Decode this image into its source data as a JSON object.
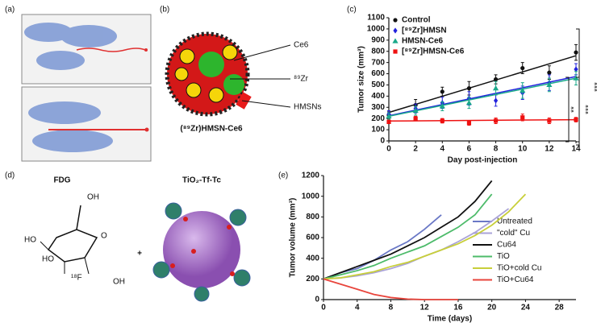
{
  "panels": {
    "labels": [
      "(a)",
      "(b)",
      "(c)",
      "(d)",
      "(e)"
    ],
    "b": {
      "labels": [
        "Ce6",
        "⁸⁹Zr",
        "HMSNs"
      ],
      "caption": "(⁸⁹Zr)HMSN-Ce6"
    },
    "d": {
      "left": "FDG",
      "right": "TiO₂-Tf-Tc",
      "plus": "+",
      "atoms": [
        "OH",
        "HO",
        "HO",
        "O",
        "¹⁸F",
        "OH"
      ]
    }
  },
  "chart_data": [
    {
      "type": "scatter",
      "fit_lines": true,
      "legend": "upper left",
      "xlabel": "Day post-injection",
      "ylabel": "Tumor size (mm³)",
      "x": [
        0,
        2,
        4,
        6,
        8,
        10,
        12,
        14
      ],
      "xlim": [
        0,
        14
      ],
      "xticks": [
        0,
        2,
        4,
        6,
        8,
        10,
        12,
        14
      ],
      "ylim": [
        0,
        1100
      ],
      "yticks": [
        0,
        100,
        200,
        300,
        400,
        500,
        600,
        700,
        800,
        900,
        1000,
        1100
      ],
      "series": [
        {
          "name": "Control",
          "color": "#111111",
          "marker": "circle",
          "values": [
            230,
            320,
            440,
            470,
            550,
            650,
            610,
            790
          ],
          "errors": [
            30,
            50,
            40,
            60,
            40,
            50,
            60,
            70
          ]
        },
        {
          "name": "[⁸⁹Zr]HMSN",
          "color": "#2222dd",
          "marker": "diamond",
          "values": [
            240,
            290,
            340,
            380,
            360,
            430,
            520,
            640
          ],
          "errors": [
            30,
            40,
            50,
            60,
            50,
            60,
            70,
            50
          ]
        },
        {
          "name": "HMSN-Ce6",
          "color": "#1aa98a",
          "marker": "triangle",
          "values": [
            220,
            270,
            310,
            340,
            470,
            450,
            500,
            560
          ],
          "errors": [
            30,
            40,
            40,
            50,
            60,
            70,
            60,
            60
          ]
        },
        {
          "name": "[⁸⁹Zr]HMSN-Ce6",
          "color": "#ee1111",
          "marker": "square",
          "values": [
            170,
            200,
            180,
            160,
            180,
            210,
            180,
            190
          ],
          "errors": [
            15,
            20,
            20,
            20,
            25,
            30,
            25,
            20
          ]
        }
      ],
      "annotations": [
        "***",
        "**",
        "***"
      ]
    },
    {
      "type": "line",
      "legend": "right",
      "xlabel": "Time (days)",
      "ylabel": "Tumor volume (mm³)",
      "xlim": [
        0,
        30
      ],
      "xticks": [
        0,
        4,
        8,
        12,
        16,
        20,
        24,
        28
      ],
      "ylim": [
        0,
        1200
      ],
      "yticks": [
        0,
        200,
        400,
        600,
        800,
        1000,
        1200
      ],
      "series": [
        {
          "name": "Untreated",
          "color": "#6a78c6",
          "x": [
            0,
            2,
            4,
            6,
            8,
            10,
            12,
            14
          ],
          "values": [
            200,
            260,
            300,
            380,
            480,
            560,
            680,
            820
          ]
        },
        {
          "name": "\"cold\" Cu",
          "color": "#aaa3d8",
          "x": [
            0,
            2,
            4,
            6,
            8,
            10,
            12,
            14,
            16,
            18,
            20,
            22
          ],
          "values": [
            200,
            210,
            230,
            260,
            300,
            350,
            420,
            480,
            560,
            650,
            760,
            880
          ]
        },
        {
          "name": "Cu64",
          "color": "#111111",
          "x": [
            0,
            2,
            4,
            6,
            8,
            10,
            12,
            14,
            16,
            18,
            20
          ],
          "values": [
            200,
            260,
            320,
            380,
            440,
            520,
            600,
            700,
            800,
            950,
            1150
          ]
        },
        {
          "name": "TiO",
          "color": "#4dbb6a",
          "x": [
            0,
            2,
            4,
            6,
            8,
            10,
            12,
            14,
            16,
            18,
            20
          ],
          "values": [
            200,
            240,
            280,
            330,
            400,
            460,
            520,
            610,
            700,
            820,
            1020
          ]
        },
        {
          "name": "TiO+cold Cu",
          "color": "#c8cf3a",
          "x": [
            0,
            2,
            4,
            6,
            8,
            10,
            12,
            14,
            16,
            18,
            20,
            22,
            24
          ],
          "values": [
            200,
            210,
            240,
            270,
            320,
            360,
            420,
            480,
            540,
            620,
            720,
            850,
            1020
          ]
        },
        {
          "name": "TiO+Cu64",
          "color": "#e8453c",
          "x": [
            0,
            2,
            4,
            6,
            8,
            10,
            12,
            14,
            16
          ],
          "values": [
            200,
            150,
            100,
            50,
            20,
            5,
            0,
            0,
            0
          ]
        }
      ]
    }
  ]
}
